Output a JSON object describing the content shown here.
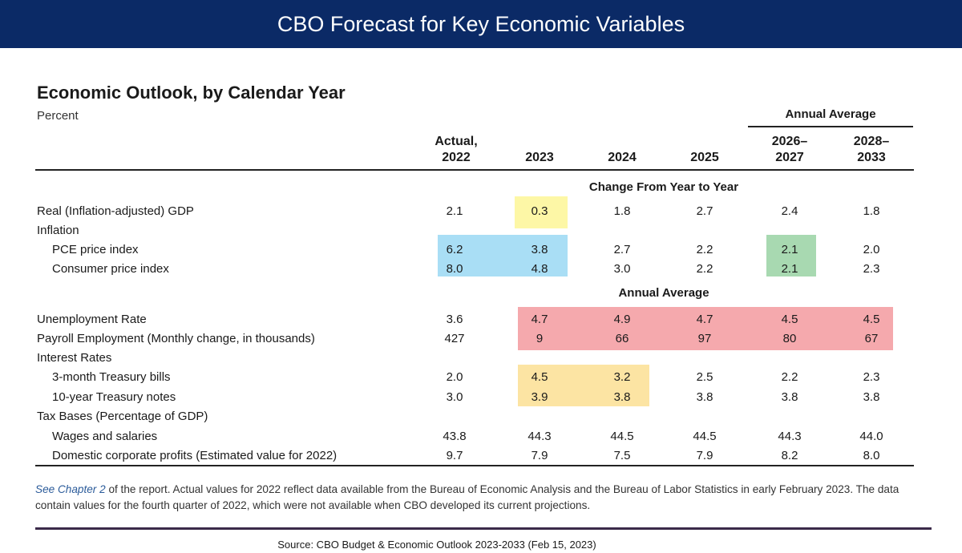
{
  "banner": {
    "title": "CBO Forecast for Key Economic Variables"
  },
  "table": {
    "title": "Economic Outlook, by Calendar Year",
    "subtitle": "Percent",
    "annual_average_group": "Annual Average",
    "columns": [
      {
        "line1": "Actual,",
        "line2": "2022"
      },
      {
        "line1": "",
        "line2": "2023"
      },
      {
        "line1": "",
        "line2": "2024"
      },
      {
        "line1": "",
        "line2": "2025"
      },
      {
        "line1": "2026–",
        "line2": "2027"
      },
      {
        "line1": "2028–",
        "line2": "2033"
      }
    ],
    "sections": {
      "change": "Change From Year to Year",
      "annual": "Annual Average"
    },
    "rows": [
      {
        "label": "Real (Inflation-adjusted) GDP",
        "indent": false,
        "values": [
          "2.1",
          "0.3",
          "1.8",
          "2.7",
          "2.4",
          "1.8"
        ]
      },
      {
        "label": "Inflation",
        "indent": false,
        "values": []
      },
      {
        "label": "PCE price index",
        "indent": true,
        "values": [
          "6.2",
          "3.8",
          "2.7",
          "2.2",
          "2.1",
          "2.0"
        ]
      },
      {
        "label": "Consumer price index",
        "indent": true,
        "values": [
          "8.0",
          "4.8",
          "3.0",
          "2.2",
          "2.1",
          "2.3"
        ]
      },
      {
        "label": "Unemployment Rate",
        "indent": false,
        "values": [
          "3.6",
          "4.7",
          "4.9",
          "4.7",
          "4.5",
          "4.5"
        ]
      },
      {
        "label": "Payroll Employment (Monthly change, in thousands)",
        "indent": false,
        "values": [
          "427",
          "9",
          "66",
          "97",
          "80",
          "67"
        ]
      },
      {
        "label": "Interest Rates",
        "indent": false,
        "values": []
      },
      {
        "label": "3-month Treasury bills",
        "indent": true,
        "values": [
          "2.0",
          "4.5",
          "3.2",
          "2.5",
          "2.2",
          "2.3"
        ]
      },
      {
        "label": "10-year Treasury notes",
        "indent": true,
        "values": [
          "3.0",
          "3.9",
          "3.8",
          "3.8",
          "3.8",
          "3.8"
        ]
      },
      {
        "label": "Tax Bases (Percentage of GDP)",
        "indent": false,
        "values": []
      },
      {
        "label": "Wages and salaries",
        "indent": true,
        "values": [
          "43.8",
          "44.3",
          "44.5",
          "44.5",
          "44.3",
          "44.0"
        ]
      },
      {
        "label": "Domestic corporate profits (Estimated value for 2022)",
        "indent": true,
        "values": [
          "9.7",
          "7.9",
          "7.5",
          "7.9",
          "8.2",
          "8.0"
        ]
      }
    ],
    "highlight_colors": {
      "yellow": "#fdf7a6",
      "blue": "#a9def5",
      "green": "#a8d9b1",
      "red": "#f5a9ad",
      "orange": "#fce4a3"
    }
  },
  "note": {
    "link_text": "See Chapter 2",
    "text": " of the report. Actual values for 2022 reflect data available from the Bureau of Economic Analysis and the Bureau of Labor Statistics in early February 2023. The data contain values for the fourth quarter of 2022, which were not available when CBO developed its current projections."
  },
  "source": "Source:  CBO Budget & Economic Outlook 2023-2033 (Feb 15, 2023)"
}
